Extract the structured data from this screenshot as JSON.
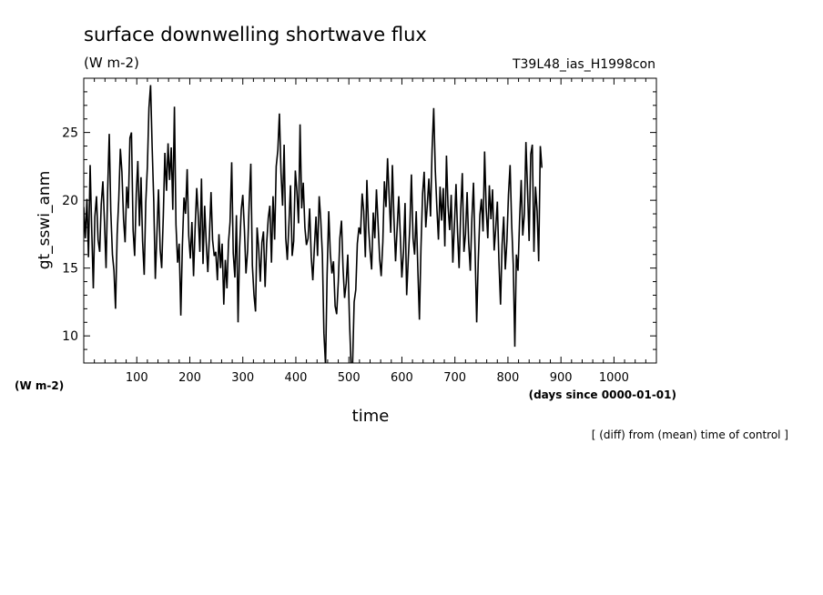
{
  "header": {
    "title": "surface downwelling shortwave flux",
    "units": "(W m-2)",
    "run_label": "T39L48_ias_H1998con"
  },
  "footer": {
    "yunit_note": "(W m-2)",
    "x_units": "(days since 0000-01-01)",
    "note": "[ (diff) from (mean) time of control ]"
  },
  "chart_data": {
    "type": "line",
    "title": "surface downwelling shortwave flux",
    "xlabel": "time",
    "ylabel": "gt_sswi_anm",
    "xlim": [
      0,
      1080
    ],
    "ylim": [
      8,
      29
    ],
    "grid": false,
    "x_ticks": [
      100,
      200,
      300,
      400,
      500,
      600,
      700,
      800,
      900,
      1000
    ],
    "y_ticks": [
      10,
      15,
      20,
      25
    ],
    "series": [
      {
        "color": "#000000",
        "x_start": 0,
        "x_step": 3,
        "values": [
          19.5,
          17.2,
          20.1,
          15.8,
          22.6,
          18.0,
          13.5,
          18.8,
          20.3,
          17.1,
          16.2,
          19.7,
          21.4,
          18.5,
          15.0,
          20.6,
          24.9,
          19.2,
          16.0,
          14.8,
          12.0,
          17.5,
          20.0,
          23.8,
          22.1,
          18.6,
          16.9,
          21.0,
          19.4,
          24.6,
          25.0,
          17.8,
          15.9,
          20.5,
          22.9,
          18.1,
          21.7,
          17.0,
          14.5,
          19.8,
          22.5,
          26.8,
          28.5,
          24.0,
          19.9,
          14.2,
          17.6,
          20.8,
          16.4,
          15.0,
          18.9,
          23.5,
          20.7,
          24.2,
          21.5,
          23.9,
          19.3,
          26.9,
          18.2,
          15.4,
          16.8,
          11.5,
          16.6,
          20.2,
          19.0,
          22.3,
          17.4,
          15.7,
          18.4,
          14.4,
          17.9,
          20.9,
          18.8,
          16.2,
          21.6,
          15.3,
          19.6,
          16.9,
          14.7,
          17.3,
          20.6,
          17.1,
          15.9,
          16.2,
          14.1,
          17.5,
          15.0,
          16.8,
          12.3,
          15.6,
          13.5,
          16.9,
          18.4,
          22.8,
          16.1,
          14.3,
          18.9,
          11.0,
          16.5,
          19.3,
          20.4,
          17.8,
          14.6,
          16.3,
          19.8,
          22.7,
          15.2,
          13.0,
          11.8,
          18.0,
          16.4,
          14.0,
          16.9,
          17.7,
          13.6,
          16.8,
          18.7,
          19.6,
          15.4,
          20.3,
          17.1,
          22.5,
          23.7,
          26.4,
          22.0,
          19.6,
          24.1,
          17.2,
          15.6,
          18.3,
          21.1,
          15.9,
          17.0,
          22.2,
          20.7,
          18.3,
          25.6,
          19.4,
          21.3,
          18.0,
          16.7,
          17.2,
          19.4,
          15.8,
          14.1,
          16.5,
          18.8,
          15.9,
          20.3,
          18.6,
          16.0,
          10.2,
          7.8,
          14.5,
          19.2,
          16.1,
          14.6,
          15.5,
          12.2,
          11.6,
          14.0,
          17.2,
          18.5,
          15.0,
          12.8,
          13.9,
          16.0,
          11.3,
          8.0,
          7.9,
          12.5,
          13.4,
          16.8,
          18.0,
          17.5,
          20.5,
          19.2,
          15.8,
          21.5,
          18.0,
          16.3,
          14.9,
          19.1,
          17.2,
          20.8,
          18.4,
          15.7,
          14.4,
          16.9,
          21.4,
          19.5,
          23.1,
          20.2,
          17.6,
          22.6,
          18.7,
          15.5,
          17.9,
          20.3,
          17.4,
          14.3,
          16.2,
          19.8,
          13.0,
          15.6,
          18.1,
          21.9,
          17.2,
          16.0,
          19.2,
          15.1,
          11.2,
          16.5,
          20.5,
          22.1,
          18.0,
          19.7,
          21.6,
          18.8,
          23.7,
          26.8,
          22.3,
          19.4,
          17.1,
          21.0,
          18.5,
          20.9,
          16.6,
          23.3,
          19.6,
          17.8,
          20.4,
          15.4,
          18.1,
          21.2,
          17.6,
          15.0,
          19.3,
          22.0,
          16.2,
          17.5,
          20.6,
          16.9,
          14.8,
          18.6,
          21.3,
          16.4,
          11.0,
          15.5,
          18.9,
          20.1,
          17.7,
          23.6,
          19.4,
          17.2,
          21.1,
          18.6,
          20.8,
          16.3,
          17.9,
          19.9,
          15.6,
          12.3,
          16.7,
          18.8,
          14.9,
          17.0,
          20.4,
          22.6,
          18.3,
          15.2,
          9.2,
          16.0,
          14.8,
          18.5,
          21.5,
          17.4,
          19.0,
          24.3,
          20.7,
          17.0,
          23.4,
          24.1,
          16.2,
          21.0,
          19.2,
          15.5,
          24.0,
          22.4
        ]
      }
    ]
  }
}
